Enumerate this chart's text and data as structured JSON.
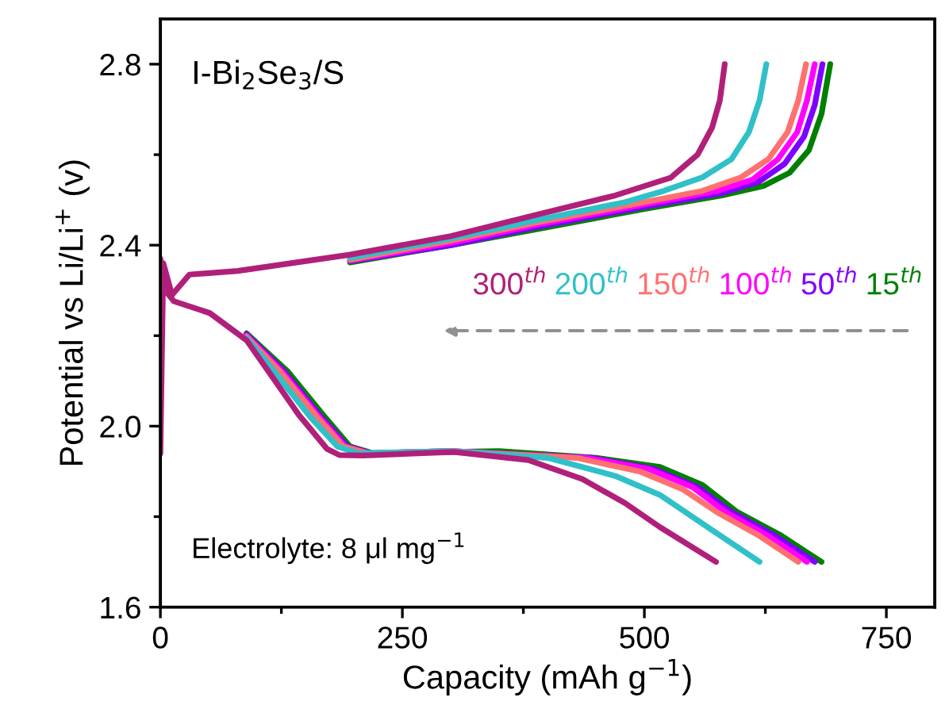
{
  "chart_data": {
    "type": "line",
    "xlabel": "Capacity (mAh g$^{−1}$)",
    "ylabel": "Potential vs Li/Li$^{+}$ (v)",
    "xlim": [
      0,
      800
    ],
    "xticks": [
      0,
      250,
      500,
      750
    ],
    "ylim": [
      1.6,
      2.9
    ],
    "yticks": [
      1.6,
      {
        "value": 2.0,
        "label": "2.0"
      },
      2.4,
      2.8
    ],
    "grid": false,
    "annotations": [
      "I-Bi$_{2}$Se$_{3}$/S",
      "Electrolyte: 8 μl mg$^{−1}$"
    ],
    "series": [
      {
        "name": "300$^{th}$",
        "color": "#b0207a",
        "x": [
          0,
          5,
          14,
          51,
          89,
          112,
          143,
          172,
          185,
          210,
          303,
          380,
          436,
          480,
          516,
          574,
          null,
          0,
          3,
          12,
          30,
          80,
          196,
          300,
          388,
          470,
          527,
          555,
          570,
          578,
          583
        ],
        "values": [
          2.37,
          2.3,
          2.276,
          2.25,
          2.19,
          2.12,
          2.025,
          1.95,
          1.936,
          1.935,
          1.943,
          1.925,
          1.883,
          1.83,
          1.777,
          1.7,
          null,
          1.94,
          2.36,
          2.29,
          2.335,
          2.343,
          2.379,
          2.42,
          2.467,
          2.51,
          2.549,
          2.6,
          2.66,
          2.72,
          2.8
        ]
      },
      {
        "name": "200$^{th}$",
        "color": "#30c0c8",
        "x": [
          89,
          118,
          155,
          183,
          205,
          300,
          400,
          470,
          516,
          570,
          619,
          null,
          196,
          300,
          388,
          480,
          520,
          560,
          590,
          608,
          619,
          626
        ],
        "values": [
          2.195,
          2.12,
          2.02,
          1.955,
          1.94,
          1.945,
          1.93,
          1.89,
          1.848,
          1.77,
          1.7,
          null,
          2.372,
          2.415,
          2.455,
          2.495,
          2.52,
          2.55,
          2.59,
          2.65,
          2.72,
          2.8
        ]
      },
      {
        "name": "150$^{th}$",
        "color": "#ff7070",
        "x": [
          89,
          124,
          162,
          189,
          214,
          300,
          430,
          495,
          540,
          575,
          617,
          659,
          null,
          196,
          300,
          388,
          500,
          560,
          600,
          628,
          648,
          659,
          667
        ],
        "values": [
          2.198,
          2.12,
          2.02,
          1.955,
          1.94,
          1.945,
          1.93,
          1.9,
          1.86,
          1.81,
          1.76,
          1.7,
          null,
          2.368,
          2.41,
          2.45,
          2.495,
          2.52,
          2.55,
          2.59,
          2.65,
          2.72,
          2.8
        ]
      },
      {
        "name": "100$^{th}$",
        "color": "#ff00ff",
        "x": [
          89,
          126,
          164,
          191,
          216,
          300,
          440,
          505,
          550,
          584,
          626,
          668,
          null,
          196,
          300,
          388,
          500,
          575,
          612,
          638,
          658,
          668,
          676
        ],
        "values": [
          2.2,
          2.12,
          2.02,
          1.955,
          1.94,
          1.945,
          1.93,
          1.905,
          1.865,
          1.81,
          1.76,
          1.7,
          null,
          2.366,
          2.405,
          2.445,
          2.49,
          2.52,
          2.545,
          2.59,
          2.65,
          2.72,
          2.8
        ]
      },
      {
        "name": "50$^{th}$",
        "color": "#8000ff",
        "x": [
          89,
          128,
          166,
          193,
          218,
          300,
          445,
          510,
          555,
          590,
          633,
          676,
          null,
          196,
          300,
          388,
          500,
          580,
          618,
          645,
          665,
          676,
          684
        ],
        "values": [
          2.203,
          2.12,
          2.02,
          1.955,
          1.94,
          1.945,
          1.93,
          1.905,
          1.865,
          1.81,
          1.76,
          1.7,
          null,
          2.365,
          2.4,
          2.44,
          2.485,
          2.515,
          2.54,
          2.58,
          2.64,
          2.71,
          2.8
        ]
      },
      {
        "name": "15$^{th}$",
        "color": "#008000",
        "x": [
          89,
          132,
          170,
          196,
          220,
          350,
          450,
          516,
          560,
          596,
          640,
          683,
          null,
          196,
          300,
          388,
          500,
          580,
          623,
          650,
          670,
          683,
          692
        ],
        "values": [
          2.205,
          2.12,
          2.02,
          1.955,
          1.94,
          1.945,
          1.93,
          1.91,
          1.87,
          1.81,
          1.76,
          1.7,
          null,
          2.362,
          2.4,
          2.435,
          2.48,
          2.51,
          2.531,
          2.56,
          2.61,
          2.69,
          2.8
        ]
      }
    ]
  }
}
